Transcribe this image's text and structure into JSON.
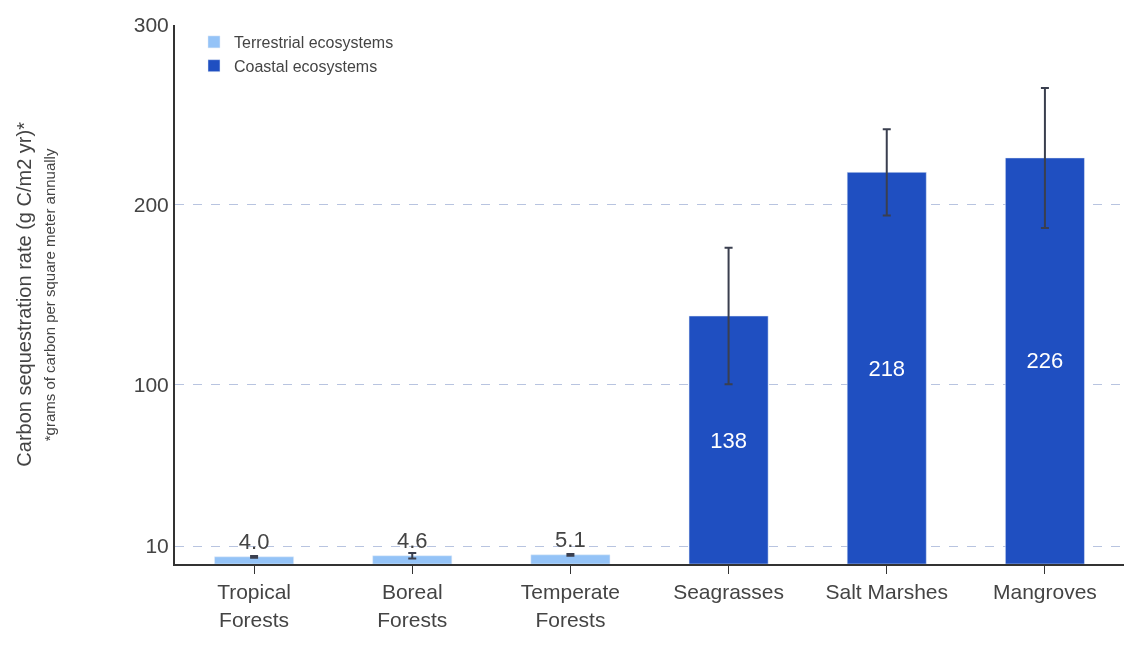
{
  "chart_data": {
    "type": "bar",
    "ylabel": "Carbon sequestration rate (g C/m2 yr)*",
    "annotations": [
      "*grams of carbon per square meter annually"
    ],
    "categories": [
      "Tropical\nForests",
      "Boreal\nForests",
      "Temperate\nForests",
      "Seagrasses",
      "Salt Marshes",
      "Mangroves"
    ],
    "series": [
      {
        "name": "Terrestrial ecosystems",
        "color": "#94c3f7",
        "values": [
          4.0,
          4.6,
          5.1,
          null,
          null,
          null
        ],
        "value_labels": [
          "4.0",
          "4.6",
          "5.1",
          null,
          null,
          null
        ],
        "errors": [
          0.5,
          1.5,
          0.5,
          null,
          null,
          null
        ]
      },
      {
        "name": "Coastal ecosystems",
        "color": "#1f4fc1",
        "values": [
          null,
          null,
          null,
          138,
          218,
          226
        ],
        "value_labels": [
          null,
          null,
          null,
          "138",
          "218",
          "226"
        ],
        "errors": [
          null,
          null,
          null,
          [
            100,
            176
          ],
          [
            194,
            242
          ],
          [
            187,
            265
          ]
        ]
      }
    ],
    "ylim": [
      0,
      300
    ],
    "yticks": [
      10,
      100,
      200,
      300
    ],
    "grid": "y",
    "legend": "top left"
  }
}
